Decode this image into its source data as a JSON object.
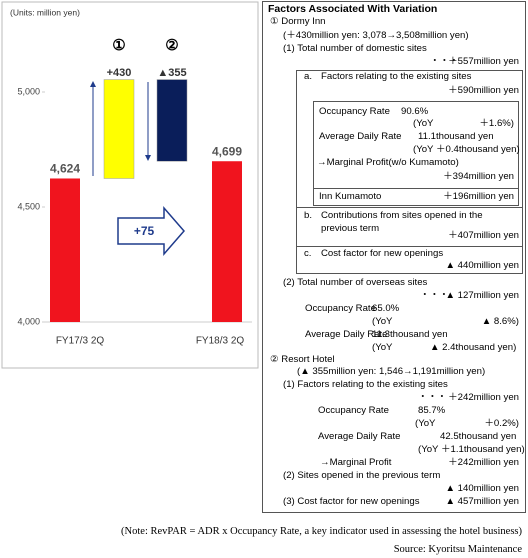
{
  "chart_data": {
    "type": "waterfall",
    "y_label": "(Units: million yen)",
    "categories": [
      "FY17/3 2Q",
      null,
      null,
      "FY18/3 2Q"
    ],
    "values": [
      4624,
      430,
      -355,
      4699
    ],
    "value_labels": [
      "4,624",
      "+430",
      "▲355",
      "4,699"
    ],
    "measures": [
      "absolute",
      "relative",
      "relative",
      "total"
    ],
    "colors": [
      "#f0141e",
      "#ffff00",
      "#0a1e5a",
      "#f0141e"
    ],
    "markers": [
      null,
      "①",
      "②",
      null
    ],
    "change_label": "+75",
    "ylim": [
      4000,
      5350
    ],
    "yticks": [
      {
        "value": 4000,
        "label": "4,000"
      },
      {
        "value": 4500,
        "label": "4,500"
      },
      {
        "value": 5000,
        "label": "5,000"
      }
    ]
  },
  "panel": {
    "title": "Factors Associated With Variation",
    "lines": [
      [
        "① Dormy Inn"
      ],
      [
        "(＋430million yen: 3,078→3,508million yen)"
      ],
      [
        "(1)  Total number of domestic sites"
      ],
      [
        "・・・",
        "＋557million yen"
      ],
      [
        "a.",
        "Factors relating to the existing sites"
      ],
      [
        "＋590million yen"
      ],
      [
        "Occupancy Rate",
        "90.6%"
      ],
      [
        "(YoY",
        "＋1.6%)"
      ],
      [
        "Average Daily Rate",
        "11.1thousand yen"
      ],
      [
        "(YoY ＋0.4thousand yen)"
      ],
      [
        "→Marginal Profit(w/o Kumamoto)"
      ],
      [
        "＋394million yen"
      ],
      [
        "Inn Kumamoto",
        "＋196million yen"
      ],
      [
        "b.",
        "Contributions from sites opened in the"
      ],
      [
        "previous term"
      ],
      [
        "＋407million yen"
      ],
      [
        "c.",
        "Cost factor for new openings"
      ],
      [
        "▲ 440million yen"
      ],
      [
        "(2) Total number of overseas sites"
      ],
      [
        "・・・",
        "▲ 127million yen"
      ],
      [
        "Occupancy Rate",
        "65.0%"
      ],
      [
        "(YoY",
        "▲ 8.6%)"
      ],
      [
        "Average Daily Rate",
        "11.3thousand yen"
      ],
      [
        "(YoY",
        "▲ 2.4thousand yen)"
      ],
      [
        "② Resort Hotel"
      ],
      [
        "(▲ 355million yen: 1,546→1,191million yen)"
      ],
      [
        "(1) Factors relating to the existing sites"
      ],
      [
        "・・・",
        "＋242million yen"
      ],
      [
        "Occupancy Rate",
        "85.7%"
      ],
      [
        "(YoY",
        "＋0.2%)"
      ],
      [
        "Average Daily Rate",
        "42.5thousand yen"
      ],
      [
        "(YoY ＋1.1thousand yen)"
      ],
      [
        "→Marginal Profit",
        "＋242million yen"
      ],
      [
        "(2) Sites opened in the previous term"
      ],
      [
        "▲ 140million yen"
      ],
      [
        "(3) Cost factor for new openings",
        "▲ 457million yen"
      ]
    ]
  },
  "note": "(Note:   RevPAR = ADR x Occupancy Rate, a key indicator used in assessing the hotel business)",
  "source": "Source:   Kyoritsu Maintenance"
}
